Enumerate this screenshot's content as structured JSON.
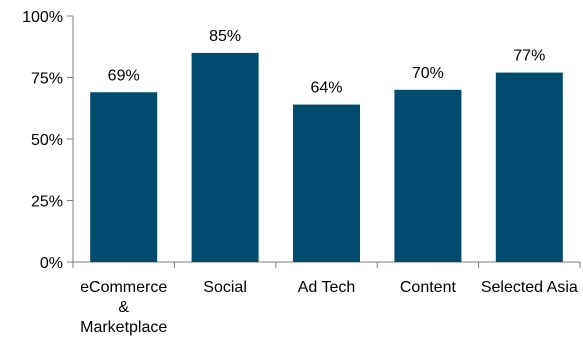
{
  "chart_data": {
    "type": "bar",
    "categories": [
      "eCommerce & Marketplace",
      "Social",
      "Ad Tech",
      "Content",
      "Selected Asia"
    ],
    "category_label_lines": [
      [
        "eCommerce",
        "&",
        "Marketplace"
      ],
      [
        "Social"
      ],
      [
        "Ad Tech"
      ],
      [
        "Content"
      ],
      [
        "Selected Asia"
      ]
    ],
    "values": [
      69,
      85,
      64,
      70,
      77
    ],
    "data_labels": [
      "69%",
      "85%",
      "64%",
      "70%",
      "77%"
    ],
    "y_ticks": [
      0,
      25,
      50,
      75,
      100
    ],
    "y_tick_labels": [
      "0%",
      "25%",
      "50%",
      "75%",
      "100%"
    ],
    "ylim": [
      0,
      100
    ],
    "grid": false,
    "legend": "none",
    "bar_color": "#004b70",
    "axis_color": "#7f7f7f"
  }
}
